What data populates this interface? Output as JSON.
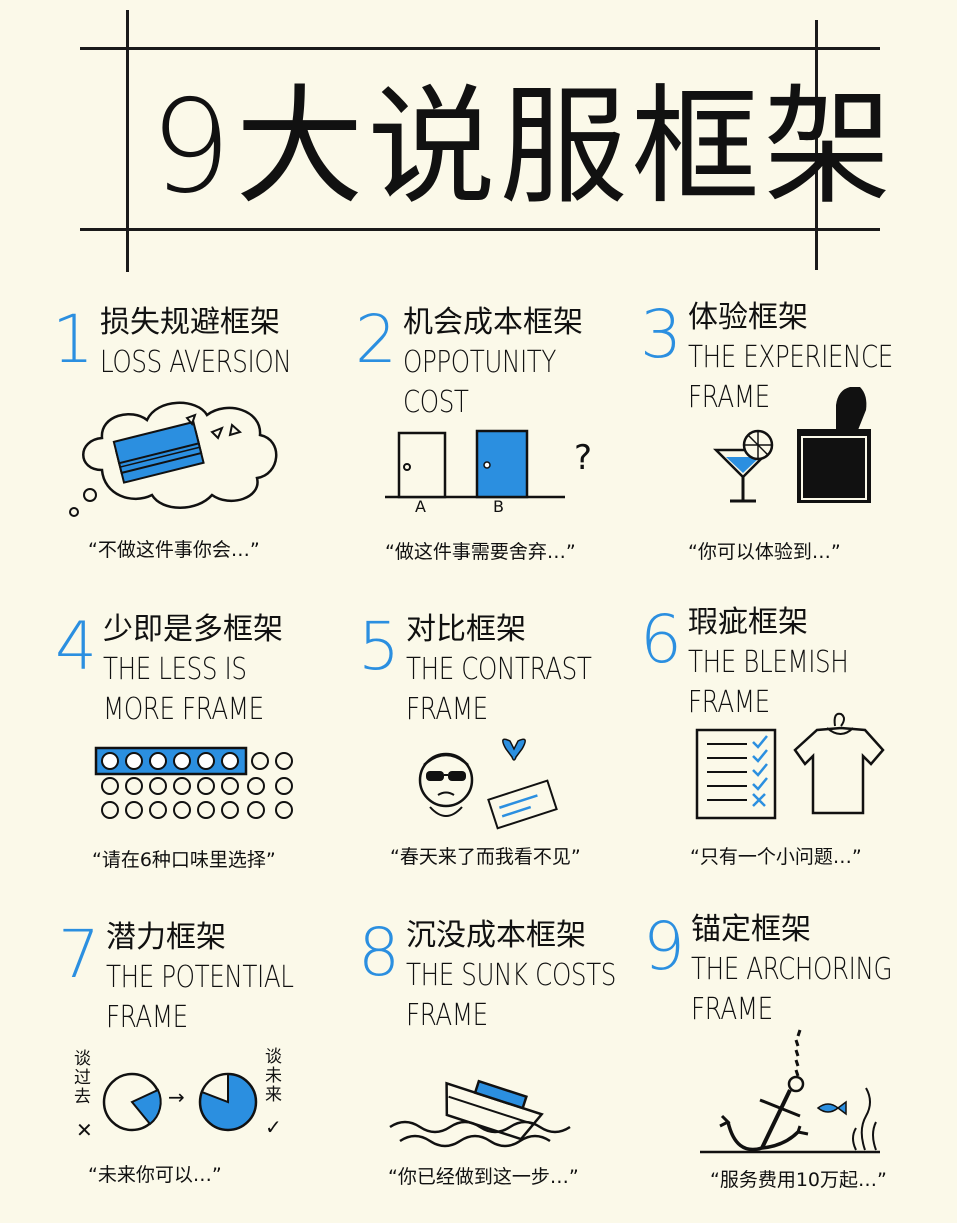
{
  "title": "9大说服框架",
  "colors": {
    "accent": "#2b8fe0",
    "ink": "#111111",
    "background": "#fbf9e9"
  },
  "frames": [
    {
      "number": "1",
      "zh": "损失规避框架",
      "en": "LOSS AVERSION",
      "quote": "“不做这件事你会…”",
      "icon": "money-stack-thought-cloud-icon"
    },
    {
      "number": "2",
      "zh": "机会成本框架",
      "en": "OPPOTUNITY COST",
      "quote": "“做这件事需要舍弃…”",
      "icon": "two-doors-icon",
      "door_labels": [
        "A",
        "B"
      ],
      "mark": "?"
    },
    {
      "number": "3",
      "zh": "体验框架",
      "en": "THE EXPERIENCE FRAME",
      "quote": "“你可以体验到…”",
      "icon": "cocktail-and-wine-bucket-icon"
    },
    {
      "number": "4",
      "zh": "少即是多框架",
      "en": "THE LESS IS MORE FRAME",
      "quote": "“请在6种口味里选择”",
      "icon": "circles-grid-icon"
    },
    {
      "number": "5",
      "zh": "对比框架",
      "en": "THE CONTRAST FRAME",
      "quote": "“春天来了而我看不见”",
      "icon": "blind-man-sign-icon"
    },
    {
      "number": "6",
      "zh": "瑕疵框架",
      "en": "THE BLEMISH FRAME",
      "quote": "“只有一个小问题…”",
      "icon": "checklist-shirt-icon"
    },
    {
      "number": "7",
      "zh": "潜力框架",
      "en": "THE POTENTIAL FRAME",
      "quote": "“未来你可以…”",
      "icon": "pie-charts-icon",
      "left_note": "谈过去",
      "right_note": "谈未来",
      "left_mark": "✕",
      "right_mark": "✓",
      "arrow": "→"
    },
    {
      "number": "8",
      "zh": "沉没成本框架",
      "en": "THE SUNK COSTS FRAME",
      "quote": "“你已经做到这一步…”",
      "icon": "sinking-ship-icon"
    },
    {
      "number": "9",
      "zh": "锚定框架",
      "en": "THE ARCHORING FRAME",
      "quote": "“服务费用10万起…”",
      "icon": "anchor-icon"
    }
  ]
}
